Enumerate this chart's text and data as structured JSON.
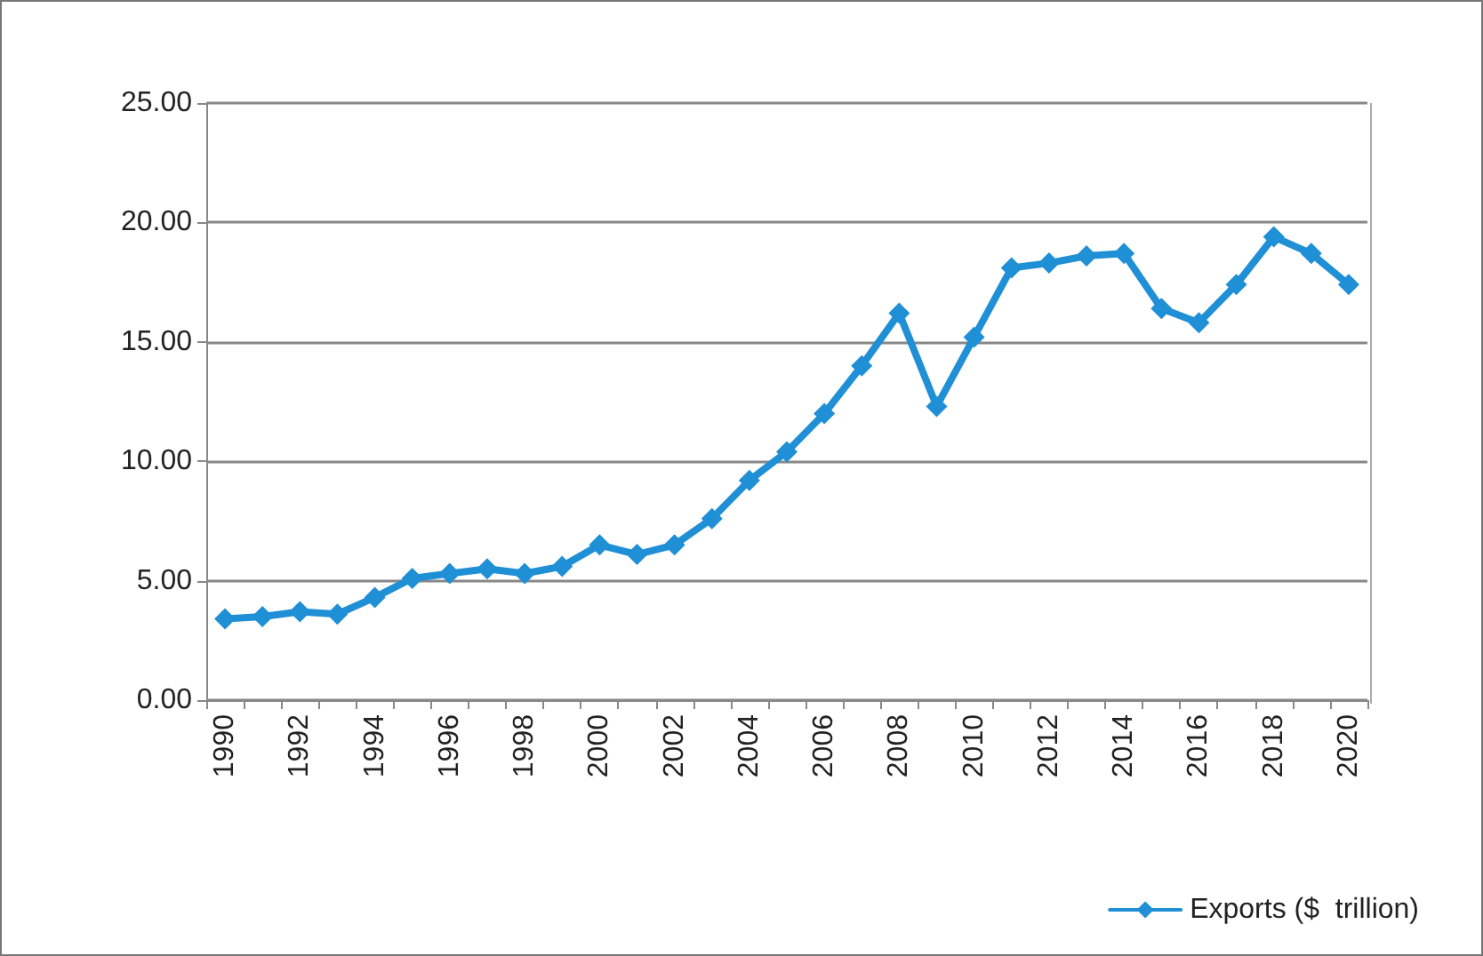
{
  "chart_data": {
    "type": "line",
    "categories": [
      "1990",
      null,
      "1992",
      null,
      "1994",
      null,
      "1996",
      null,
      "1998",
      null,
      "2000",
      null,
      "2002",
      null,
      "2004",
      null,
      "2006",
      null,
      "2008",
      null,
      "2010",
      null,
      "2012",
      null,
      "2014",
      null,
      "2016",
      null,
      "2018",
      null,
      "2020"
    ],
    "series": [
      {
        "name": "Exports ($  trillion)",
        "color": "#1f8fd6",
        "values": [
          3.4,
          3.5,
          3.7,
          3.6,
          4.3,
          5.1,
          5.3,
          5.5,
          5.3,
          5.6,
          6.5,
          6.1,
          6.5,
          7.6,
          9.2,
          10.4,
          12.0,
          14.0,
          16.2,
          12.3,
          15.2,
          18.1,
          18.3,
          18.6,
          18.7,
          16.4,
          15.8,
          17.4,
          19.4,
          18.7,
          17.4
        ]
      }
    ],
    "ylim": [
      0,
      25
    ],
    "yticks": [
      {
        "value": 0,
        "label": "0.00"
      },
      {
        "value": 5,
        "label": "5.00"
      },
      {
        "value": 10,
        "label": "10.00"
      },
      {
        "value": 15,
        "label": "15.00"
      },
      {
        "value": 20,
        "label": "20.00"
      },
      {
        "value": 25,
        "label": "25.00"
      }
    ],
    "grid": "y",
    "legend": "bottom right",
    "marker": "diamond",
    "line_style": "solid"
  }
}
